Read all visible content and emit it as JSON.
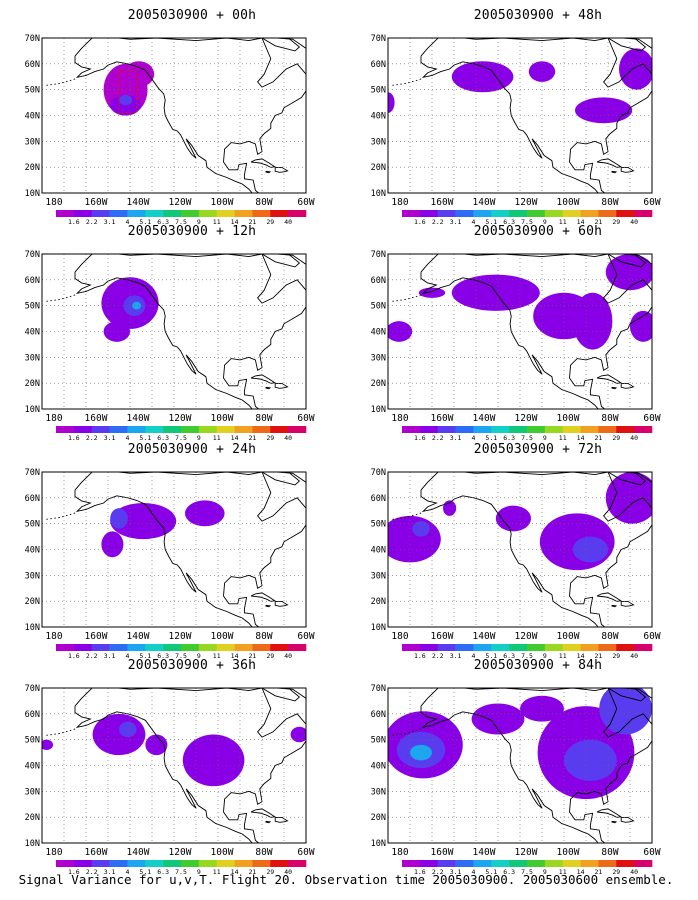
{
  "figure": {
    "caption": "Signal Variance for u,v,T. Flight 20. Observation time 2005030900. 2005030600 ensemble."
  },
  "axes": {
    "lat_labels": [
      "70N",
      "60N",
      "50N",
      "40N",
      "30N",
      "20N",
      "10N"
    ],
    "lon_labels": [
      "180",
      "160W",
      "140W",
      "120W",
      "100W",
      "80W",
      "60W"
    ]
  },
  "colorbar": {
    "labels": [
      "1.6",
      "2.2",
      "3.1",
      "4",
      "5.1",
      "6.3",
      "7.5",
      "9",
      "11",
      "14",
      "21",
      "29",
      "40"
    ],
    "colors": [
      "#b000d0",
      "#8a00e6",
      "#5a3cf0",
      "#2f6cf6",
      "#1ca6f0",
      "#12d0c8",
      "#10c878",
      "#40cc30",
      "#98d820",
      "#e0d020",
      "#f2a020",
      "#ee6a18",
      "#e01010",
      "#d8006a"
    ]
  },
  "panels": [
    {
      "title": "2005030900 + 00h"
    },
    {
      "title": "2005030900 + 48h"
    },
    {
      "title": "2005030900 + 12h"
    },
    {
      "title": "2005030900 + 60h"
    },
    {
      "title": "2005030900 + 24h"
    },
    {
      "title": "2005030900 + 72h"
    },
    {
      "title": "2005030900 + 36h"
    },
    {
      "title": "2005030900 + 84h"
    }
  ]
}
